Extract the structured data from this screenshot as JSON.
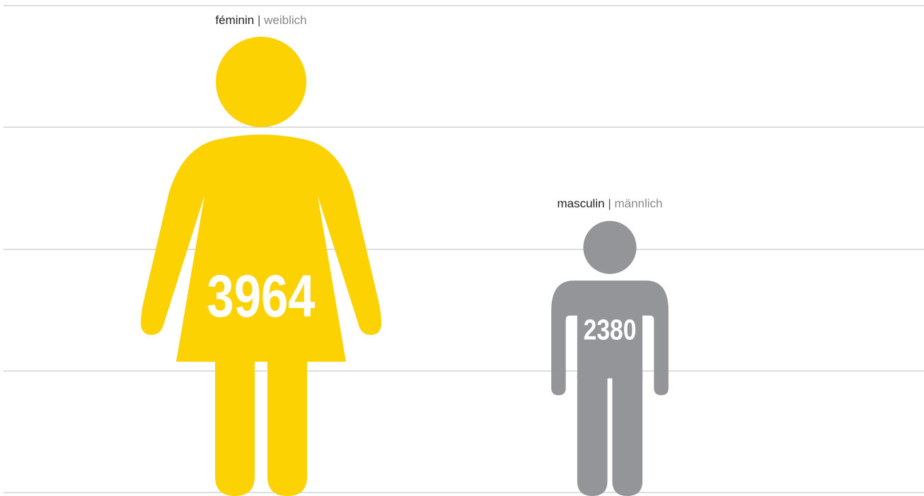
{
  "chart_data": {
    "type": "pictograph",
    "categories": [
      "féminin",
      "masculin"
    ],
    "categories_de": [
      "weiblich",
      "männlich"
    ],
    "separator": "|",
    "values": [
      3964,
      2380
    ],
    "colors": [
      "#fcd202",
      "#939598"
    ]
  }
}
